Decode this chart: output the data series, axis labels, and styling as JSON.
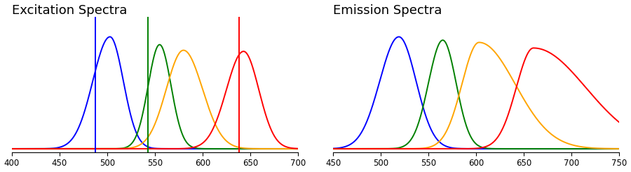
{
  "excitation": {
    "title": "Excitation Spectra",
    "xlim": [
      400,
      700
    ],
    "vlines": [
      488,
      543,
      638
    ],
    "vline_colors": [
      "blue",
      "green",
      "red"
    ],
    "spectra": [
      {
        "color": "blue",
        "peak": 503,
        "sigma_l": 18,
        "sigma_r": 14,
        "amp": 1.0
      },
      {
        "color": "green",
        "peak": 555,
        "sigma_l": 12,
        "sigma_r": 12,
        "amp": 0.93
      },
      {
        "color": "orange",
        "peak": 580,
        "sigma_l": 18,
        "sigma_r": 20,
        "amp": 0.88
      },
      {
        "color": "red",
        "peak": 643,
        "sigma_l": 18,
        "sigma_r": 16,
        "amp": 0.87
      }
    ]
  },
  "emission": {
    "title": "Emission Spectra",
    "xlim": [
      450,
      750
    ],
    "spectra": [
      {
        "color": "blue",
        "peak": 519,
        "sigma_l": 20,
        "sigma_r": 18,
        "amp": 1.0
      },
      {
        "color": "green",
        "peak": 565,
        "sigma_l": 15,
        "sigma_r": 14,
        "amp": 0.97
      },
      {
        "color": "orange",
        "peak": 603,
        "sigma_l": 18,
        "sigma_r": 38,
        "amp": 0.95
      },
      {
        "color": "red",
        "peak": 660,
        "sigma_l": 18,
        "sigma_r": 55,
        "amp": 0.9
      }
    ]
  },
  "background_color": "#ffffff",
  "title_fontsize": 13,
  "linewidth": 1.4
}
